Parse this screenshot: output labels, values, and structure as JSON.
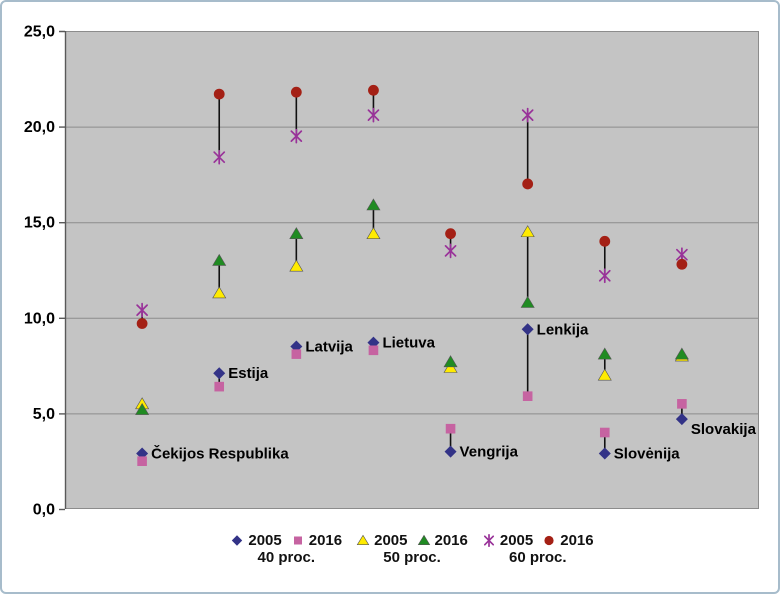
{
  "chart_data": {
    "type": "scatter",
    "title": "",
    "xlabel": "",
    "ylabel": "",
    "ylim": [
      0,
      25
    ],
    "ytick_values": [
      0,
      5,
      10,
      15,
      20,
      25
    ],
    "ytick_labels": [
      "0,0",
      "5,0",
      "10,0",
      "15,0",
      "20,0",
      "25,0"
    ],
    "grid": true,
    "plot_bg": "#C4C4C4",
    "grid_color": "#8C8C8C",
    "axis_color": "#595959",
    "connector_color": "#111111",
    "pairs_connected": true,
    "categories": [
      "Čekijos Respublika",
      "Estija",
      "Latvija",
      "Lietuva",
      "Vengrija",
      "Lenkija",
      "Slovėnija",
      "Slovakija"
    ],
    "label_dy": [
      0,
      0,
      0,
      0,
      0,
      0,
      0,
      10
    ],
    "series": [
      {
        "name": "2005",
        "group": "40 proc.",
        "marker": "diamond",
        "color": "#333387",
        "values": [
          2.9,
          7.1,
          8.5,
          8.7,
          3.0,
          9.4,
          2.9,
          4.7
        ]
      },
      {
        "name": "2016",
        "group": "40 proc.",
        "marker": "square",
        "color": "#C663A1",
        "values": [
          2.5,
          6.4,
          8.1,
          8.3,
          4.2,
          5.9,
          4.0,
          5.5
        ]
      },
      {
        "name": "2005",
        "group": "50 proc.",
        "marker": "triangle",
        "color": "#FFEB00",
        "values": [
          5.5,
          11.3,
          12.7,
          14.4,
          7.4,
          14.5,
          7.0,
          8.0
        ]
      },
      {
        "name": "2016",
        "group": "50 proc.",
        "marker": "triangle",
        "color": "#208B22",
        "values": [
          5.2,
          13.0,
          14.4,
          15.9,
          7.7,
          10.8,
          8.1,
          8.1
        ]
      },
      {
        "name": "2005",
        "group": "60 proc.",
        "marker": "star",
        "color": "#993299",
        "values": [
          10.4,
          18.4,
          19.5,
          20.6,
          13.5,
          20.6,
          12.2,
          13.3
        ]
      },
      {
        "name": "2016",
        "group": "60 proc.",
        "marker": "circle",
        "color": "#A42015",
        "values": [
          9.7,
          21.7,
          21.8,
          21.9,
          14.4,
          17.0,
          14.0,
          12.8
        ]
      }
    ],
    "legend": {
      "position": "bottom",
      "groups": [
        {
          "label": "40 proc.",
          "items": [
            "2005",
            "2016"
          ]
        },
        {
          "label": "50 proc.",
          "items": [
            "2005",
            "2016"
          ]
        },
        {
          "label": "60 proc.",
          "items": [
            "2005",
            "2016"
          ]
        }
      ]
    }
  }
}
